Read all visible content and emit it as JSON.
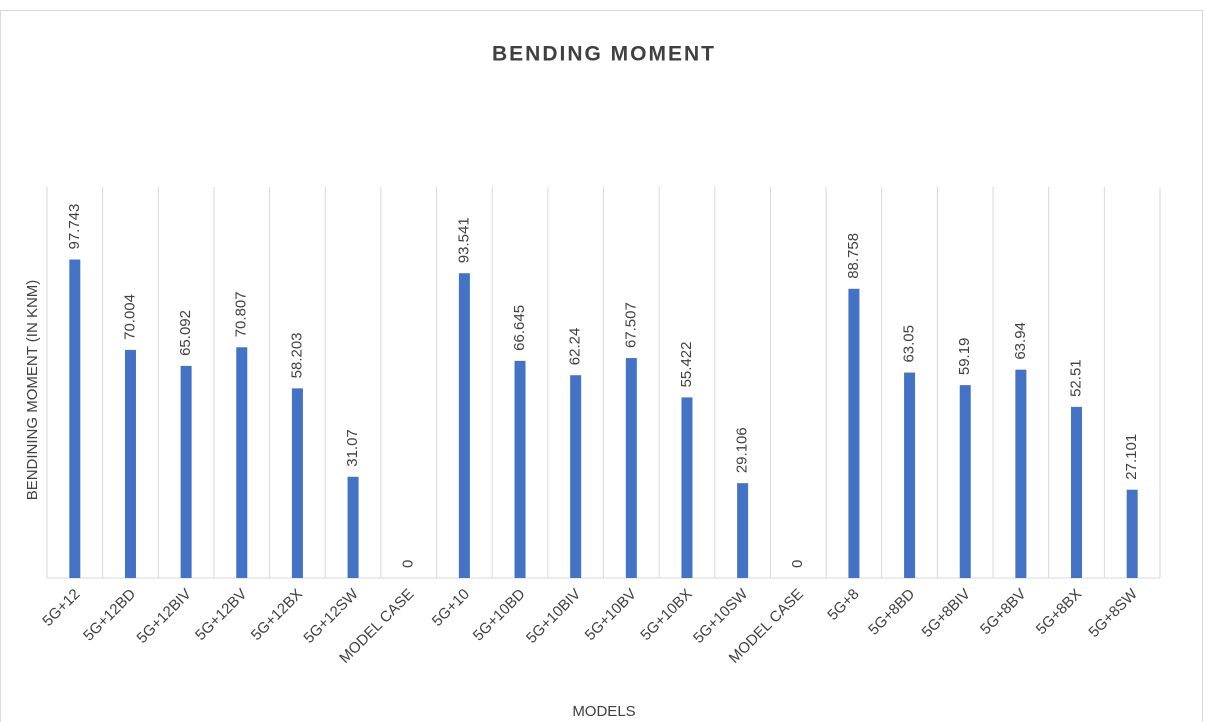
{
  "chart_data": {
    "type": "bar",
    "title": "BENDING MOMENT",
    "x_label": "MODELS",
    "y_label": "BENDINING MOMENT (IN KNM)",
    "categories": [
      "5G+12",
      "5G+12BD",
      "5G+12BIV",
      "5G+12BV",
      "5G+12BX",
      "5G+12SW",
      "MODEL CASE",
      "5G+10",
      "5G+10BD",
      "5G+10BIV",
      "5G+10BV",
      "5G+10BX",
      "5G+10SW",
      "MODEL CASE",
      "5G+8",
      "5G+8BD",
      "5G+8BIV",
      "5G+8BV",
      "5G+8BX",
      "5G+8SW"
    ],
    "values": [
      97.743,
      70.004,
      65.092,
      70.807,
      58.203,
      31.07,
      0,
      93.541,
      66.645,
      62.24,
      67.507,
      55.422,
      29.106,
      0,
      88.758,
      63.05,
      59.19,
      63.94,
      52.51,
      27.101
    ],
    "color": "#4472c4",
    "ylim": [
      0,
      120
    ],
    "grid": true
  }
}
